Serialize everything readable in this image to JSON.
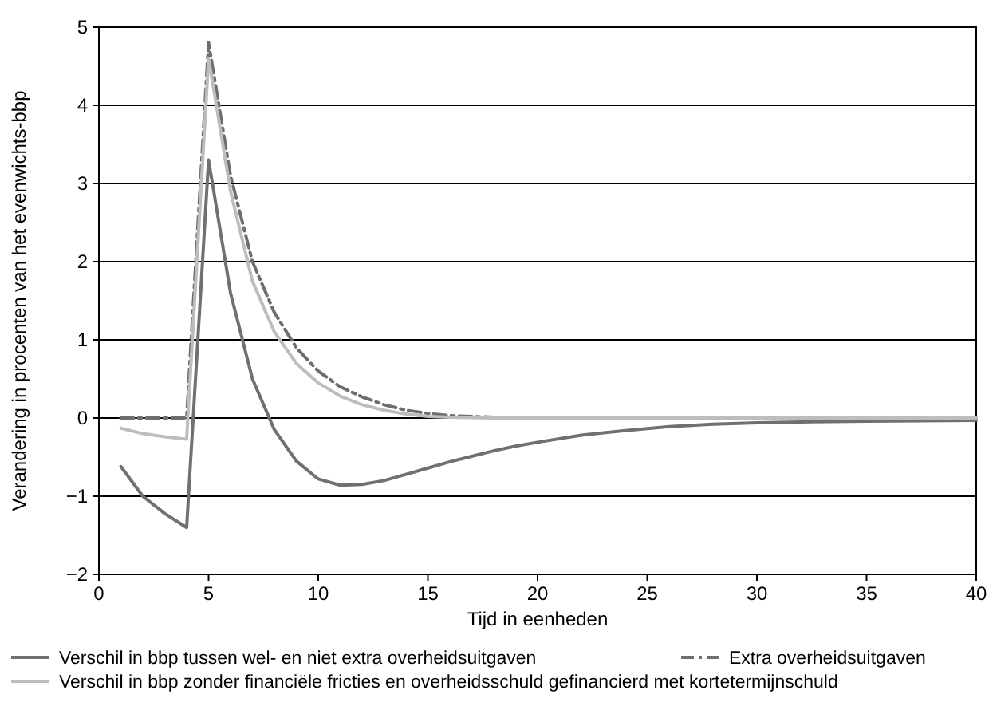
{
  "chart_data": {
    "type": "line",
    "xlabel": "Tijd in eenheden",
    "ylabel": "Verandering in procenten van het evenwichts-bbp",
    "xlim": [
      0,
      40
    ],
    "xticks": [
      0,
      5,
      10,
      15,
      20,
      25,
      30,
      35,
      40
    ],
    "ylim": [
      -2,
      5
    ],
    "yticks": [
      {
        "value": -2,
        "label": "−2"
      },
      {
        "value": -1,
        "label": "−1"
      },
      0,
      1,
      2,
      3,
      4,
      5
    ],
    "grid": "y",
    "legend": "bottom",
    "series": [
      {
        "name": "Verschil in bbp tussen wel- en niet extra overheidsuitgaven",
        "color": "#707070",
        "line_style": "solid",
        "x": [
          1,
          2,
          3,
          4,
          5,
          6,
          7,
          8,
          9,
          10,
          11,
          12,
          13,
          14,
          15,
          16,
          17,
          18,
          19,
          20,
          22,
          24,
          26,
          28,
          30,
          32,
          35,
          40
        ],
        "values": [
          -0.62,
          -1.0,
          -1.22,
          -1.4,
          3.3,
          1.6,
          0.5,
          -0.15,
          -0.55,
          -0.78,
          -0.86,
          -0.85,
          -0.8,
          -0.72,
          -0.64,
          -0.56,
          -0.49,
          -0.42,
          -0.36,
          -0.31,
          -0.22,
          -0.16,
          -0.11,
          -0.08,
          -0.06,
          -0.05,
          -0.04,
          -0.03
        ]
      },
      {
        "name": "Extra overheidsuitgaven",
        "color": "#6e6e6e",
        "line_style": "dashdot",
        "x": [
          1,
          2,
          3,
          4,
          5,
          6,
          7,
          8,
          9,
          10,
          11,
          12,
          13,
          14,
          15,
          16,
          18,
          20,
          40
        ],
        "values": [
          0,
          0,
          0,
          0,
          4.8,
          3.1,
          2.0,
          1.35,
          0.9,
          0.6,
          0.4,
          0.27,
          0.17,
          0.1,
          0.06,
          0.03,
          0.01,
          0,
          0
        ]
      },
      {
        "name": "Verschil in bbp zonder financiële fricties en overheidsschuld gefinancierd met kortetermijnschuld",
        "color": "#bdbdbd",
        "line_style": "solid",
        "x": [
          1,
          2,
          3,
          4,
          5,
          6,
          7,
          8,
          9,
          10,
          11,
          12,
          13,
          14,
          15,
          16,
          18,
          20,
          40
        ],
        "values": [
          -0.13,
          -0.2,
          -0.24,
          -0.27,
          4.6,
          2.9,
          1.75,
          1.1,
          0.7,
          0.45,
          0.28,
          0.17,
          0.1,
          0.05,
          0.02,
          0.01,
          0,
          0,
          0
        ]
      }
    ]
  }
}
